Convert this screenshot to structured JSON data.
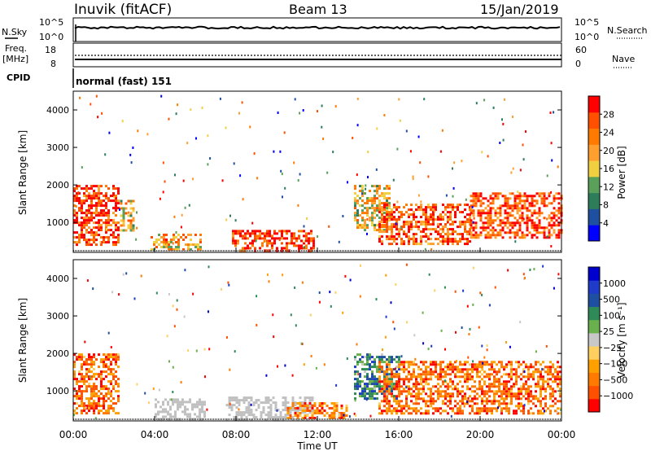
{
  "header": {
    "station": "Inuvik (fitACF)",
    "beam": "Beam 13",
    "date": "15/Jan/2019"
  },
  "summary_panels": {
    "nsky_label": "N.Sky",
    "nsky_ticks": [
      "10^5",
      "10^0"
    ],
    "nsearch_label": "N.Search",
    "nsearch_ticks": [
      "10^5",
      "10^0"
    ],
    "freq_label_1": "Freq.",
    "freq_label_2": "[MHz]",
    "freq_ticks": [
      "18",
      "8"
    ],
    "nave_label": "Nave",
    "nave_ticks": [
      "60",
      "0"
    ],
    "cpid_label": "CPID",
    "cpid_text": "normal (fast) 151"
  },
  "colors": {
    "power_scale": [
      "#0000ff",
      "#1f4fa0",
      "#2e7d5a",
      "#5aa05a",
      "#f0d040",
      "#ff9f30",
      "#ff7a00",
      "#ff5000",
      "#ff0000"
    ],
    "velocity_scale": [
      "#ff0000",
      "#ff5000",
      "#ff7a00",
      "#ffa000",
      "#ffd060",
      "#c8c8c8",
      "#6ab04c",
      "#2e8b57",
      "#1f4fa0",
      "#1e3cc8",
      "#0000cc"
    ],
    "ground_scatter": "#c0c0c0"
  },
  "chart_data": [
    {
      "type": "heatmap",
      "name": "power",
      "ylabel": "Slant Range [km]",
      "y_ticks": [
        "1000",
        "2000",
        "3000",
        "4000"
      ],
      "ylim": [
        200,
        4500
      ],
      "x_ticks": [
        "00:00",
        "04:00",
        "08:00",
        "12:00",
        "16:00",
        "20:00",
        "00:00"
      ],
      "xlim_hours": [
        0,
        24
      ],
      "colorbar": {
        "label": "Power [dB]",
        "ticks": [
          "28",
          "24",
          "20",
          "16",
          "12",
          "8",
          "4"
        ],
        "range": [
          0,
          30
        ]
      },
      "regions": [
        {
          "t0": 0.0,
          "t1": 2.2,
          "r0": 400,
          "r1": 2000,
          "level": 0.85
        },
        {
          "t0": 2.3,
          "t1": 3.0,
          "r0": 800,
          "r1": 1600,
          "level": 0.55
        },
        {
          "t0": 3.8,
          "t1": 6.2,
          "r0": 250,
          "r1": 700,
          "level": 0.65
        },
        {
          "t0": 7.8,
          "t1": 11.8,
          "r0": 250,
          "r1": 800,
          "level": 0.9
        },
        {
          "t0": 13.8,
          "t1": 15.5,
          "r0": 800,
          "r1": 2000,
          "level": 0.55
        },
        {
          "t0": 15.0,
          "t1": 19.5,
          "r0": 400,
          "r1": 1500,
          "level": 0.8
        },
        {
          "t0": 19.5,
          "t1": 24.0,
          "r0": 600,
          "r1": 1800,
          "level": 0.85
        }
      ]
    },
    {
      "type": "heatmap",
      "name": "velocity",
      "ylabel": "Slant Range [km]",
      "y_ticks": [
        "1000",
        "2000",
        "3000",
        "4000"
      ],
      "ylim": [
        200,
        4500
      ],
      "x_ticks": [
        "00:00",
        "04:00",
        "08:00",
        "12:00",
        "16:00",
        "20:00",
        "00:00"
      ],
      "xlim_hours": [
        0,
        24
      ],
      "xlabel": "Time UT",
      "colorbar": {
        "label": "Velocity [m s⁻¹]",
        "ticks": [
          "1000",
          "500",
          "100",
          "25",
          "−25",
          "−100",
          "−500",
          "−1000"
        ],
        "range": [
          -1200,
          1200
        ]
      },
      "regions": [
        {
          "t0": 0.0,
          "t1": 2.2,
          "r0": 400,
          "r1": 2000,
          "level": -0.6
        },
        {
          "t0": 4.0,
          "t1": 6.5,
          "r0": 250,
          "r1": 800,
          "level": 0.0
        },
        {
          "t0": 7.5,
          "t1": 11.8,
          "r0": 250,
          "r1": 850,
          "level": 0.0
        },
        {
          "t0": 10.5,
          "t1": 13.5,
          "r0": 300,
          "r1": 700,
          "level": -0.55
        },
        {
          "t0": 13.8,
          "t1": 16.0,
          "r0": 800,
          "r1": 2000,
          "level": 0.4
        },
        {
          "t0": 15.0,
          "t1": 24.0,
          "r0": 400,
          "r1": 1800,
          "level": -0.6
        }
      ]
    }
  ]
}
